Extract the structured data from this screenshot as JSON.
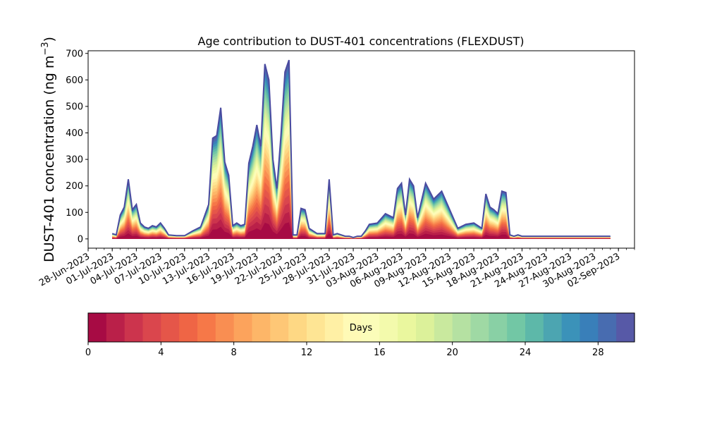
{
  "chart_data": {
    "type": "area",
    "title": "Age contribution to DUST-401 concentrations (FLEXDUST)",
    "ylabel": "DUST-401 concentration (ng m",
    "ylabel_superscript": "−3",
    "ylabel_close": ")",
    "ylim": [
      -35,
      710
    ],
    "yticks": [
      0,
      100,
      200,
      300,
      400,
      500,
      600,
      700
    ],
    "ytick_labels": [
      "0",
      "100",
      "200",
      "300",
      "400",
      "500",
      "600",
      "700"
    ],
    "xlim": [
      "2023-06-28",
      "2023-09-04"
    ],
    "xtick_labels": [
      "28-Jun-2023",
      "01-Jul-2023",
      "04-Jul-2023",
      "07-Jul-2023",
      "10-Jul-2023",
      "13-Jul-2023",
      "16-Jul-2023",
      "19-Jul-2023",
      "22-Jul-2023",
      "25-Jul-2023",
      "28-Jul-2023",
      "31-Jul-2023",
      "03-Aug-2023",
      "06-Aug-2023",
      "09-Aug-2023",
      "12-Aug-2023",
      "15-Aug-2023",
      "18-Aug-2023",
      "21-Aug-2023",
      "24-Aug-2023",
      "27-Aug-2023",
      "30-Aug-2023",
      "02-Sep-2023"
    ],
    "x": [
      "2023-07-01",
      "2023-07-01",
      "2023-07-02",
      "2023-07-02",
      "2023-07-03",
      "2023-07-03",
      "2023-07-04",
      "2023-07-04",
      "2023-07-05",
      "2023-07-05",
      "2023-07-06",
      "2023-07-06",
      "2023-07-07",
      "2023-07-07",
      "2023-07-08",
      "2023-07-09",
      "2023-07-10",
      "2023-07-11",
      "2023-07-12",
      "2023-07-13",
      "2023-07-13",
      "2023-07-14",
      "2023-07-14",
      "2023-07-15",
      "2023-07-15",
      "2023-07-16",
      "2023-07-16",
      "2023-07-17",
      "2023-07-17",
      "2023-07-18",
      "2023-07-18",
      "2023-07-19",
      "2023-07-19",
      "2023-07-20",
      "2023-07-20",
      "2023-07-21",
      "2023-07-21",
      "2023-07-22",
      "2023-07-22",
      "2023-07-23",
      "2023-07-23",
      "2023-07-24",
      "2023-07-24",
      "2023-07-25",
      "2023-07-25",
      "2023-07-26",
      "2023-07-26",
      "2023-07-27",
      "2023-07-27",
      "2023-07-28",
      "2023-07-28",
      "2023-07-29",
      "2023-07-29",
      "2023-07-30",
      "2023-07-30",
      "2023-07-31",
      "2023-07-31",
      "2023-08-01",
      "2023-08-01",
      "2023-08-02",
      "2023-08-03",
      "2023-08-04",
      "2023-08-05",
      "2023-08-05",
      "2023-08-06",
      "2023-08-06",
      "2023-08-07",
      "2023-08-07",
      "2023-08-08",
      "2023-08-09",
      "2023-08-10",
      "2023-08-11",
      "2023-08-12",
      "2023-08-13",
      "2023-08-14",
      "2023-08-15",
      "2023-08-16",
      "2023-08-16",
      "2023-08-17",
      "2023-08-17",
      "2023-08-18",
      "2023-08-18",
      "2023-08-19",
      "2023-08-19",
      "2023-08-20",
      "2023-08-20",
      "2023-08-21",
      "2023-08-21",
      "2023-08-22",
      "2023-08-22",
      "2023-08-23",
      "2023-08-23",
      "2023-08-24",
      "2023-08-24",
      "2023-08-25",
      "2023-08-25",
      "2023-08-26",
      "2023-08-27",
      "2023-08-27",
      "2023-08-28",
      "2023-08-28",
      "2023-08-29",
      "2023-08-29",
      "2023-08-30",
      "2023-08-30",
      "2023-08-31",
      "2023-08-31",
      "2023-09-01"
    ],
    "total": [
      20,
      15,
      90,
      120,
      225,
      110,
      130,
      60,
      45,
      40,
      50,
      45,
      60,
      40,
      15,
      12,
      12,
      30,
      45,
      130,
      380,
      390,
      495,
      290,
      240,
      50,
      60,
      50,
      55,
      285,
      350,
      430,
      350,
      660,
      600,
      300,
      190,
      390,
      630,
      675,
      15,
      15,
      115,
      110,
      40,
      30,
      20,
      20,
      20,
      225,
      15,
      20,
      15,
      10,
      10,
      5,
      10,
      10,
      30,
      55,
      60,
      95,
      80,
      190,
      210,
      90,
      225,
      200,
      80,
      210,
      150,
      180,
      110,
      40,
      55,
      60,
      40,
      170,
      120,
      110,
      95,
      180,
      175,
      15,
      10,
      15,
      10,
      10,
      10,
      10,
      10,
      10,
      10,
      10,
      10,
      10,
      10,
      10,
      10,
      10,
      10,
      10,
      10,
      10,
      10,
      10,
      10,
      10
    ],
    "colorbar": {
      "label": "Days",
      "min": 0,
      "max": 30,
      "ticks": [
        0,
        4,
        8,
        12,
        16,
        20,
        24,
        28
      ],
      "tick_labels": [
        "0",
        "4",
        "8",
        "12",
        "16",
        "20",
        "24",
        "28"
      ],
      "bins": 30,
      "colormap": "Spectral"
    },
    "grid": false,
    "legend": "colorbar-bottom"
  }
}
